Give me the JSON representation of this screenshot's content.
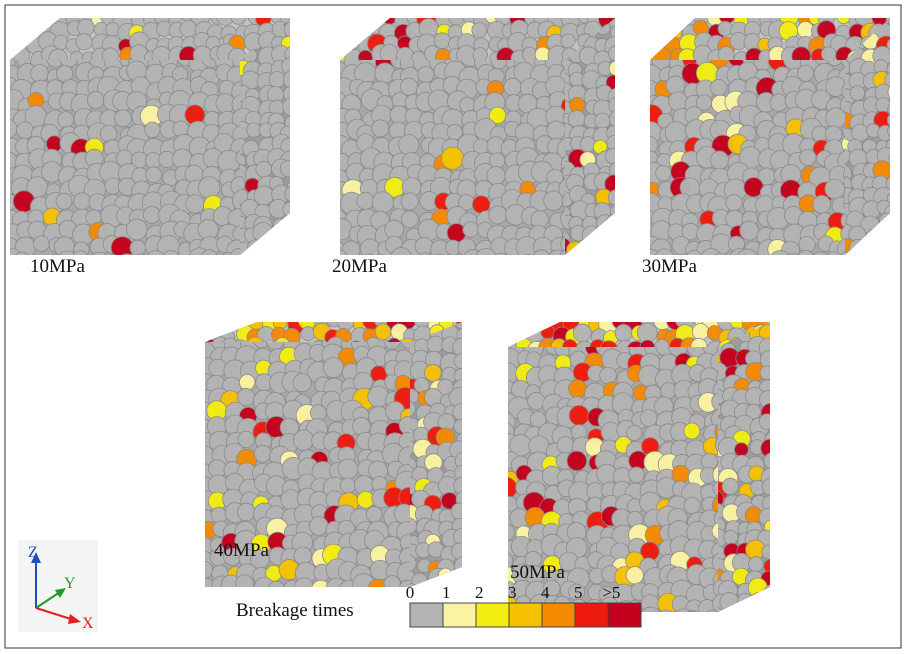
{
  "panels": [
    {
      "label": "10MPa"
    },
    {
      "label": "20MPa"
    },
    {
      "label": "30MPa"
    },
    {
      "label": "40MPa"
    },
    {
      "label": "50MPa"
    }
  ],
  "legend": {
    "title": "Breakage times",
    "items": [
      {
        "label": "0",
        "color": "#b4b4b4"
      },
      {
        "label": "1",
        "color": "#fbf3a2"
      },
      {
        "label": "2",
        "color": "#f3ee10"
      },
      {
        "label": "3",
        "color": "#f6c200"
      },
      {
        "label": "4",
        "color": "#f58a00"
      },
      {
        "label": "5",
        "color": "#ef1a0e"
      },
      {
        "label": ">5",
        "color": "#c4001c"
      }
    ]
  },
  "axes": {
    "z": "Z",
    "y": "Y",
    "x": "X"
  }
}
